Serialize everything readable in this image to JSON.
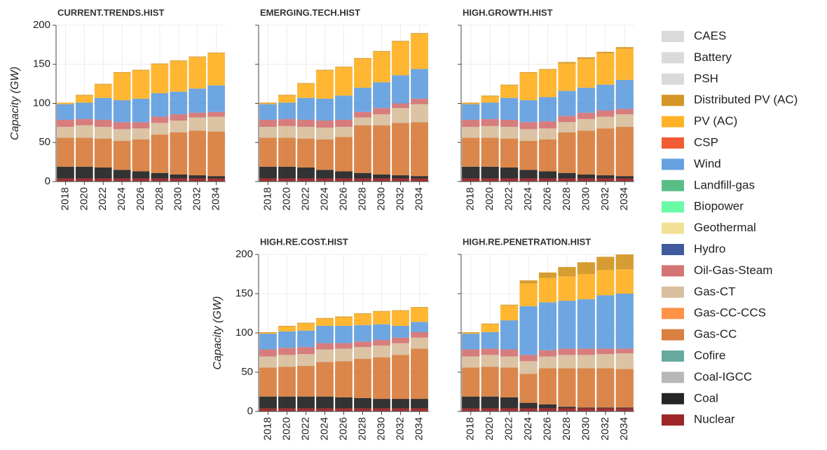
{
  "legend": [
    {
      "name": "CAES",
      "color": "#d3d3d3"
    },
    {
      "name": "Battery",
      "color": "#d3d3d3"
    },
    {
      "name": "PSH",
      "color": "#d3d3d3"
    },
    {
      "name": "Distributed PV (AC)",
      "color": "#cc8400"
    },
    {
      "name": "PV (AC)",
      "color": "#ffa500"
    },
    {
      "name": "CSP",
      "color": "#f04010"
    },
    {
      "name": "Wind",
      "color": "#4a90d9"
    },
    {
      "name": "Landfill-gas",
      "color": "#3cb371"
    },
    {
      "name": "Biopower",
      "color": "#50fa96"
    },
    {
      "name": "Geothermal",
      "color": "#f0dc82"
    },
    {
      "name": "Hydro",
      "color": "#1f3d8c"
    },
    {
      "name": "Oil-Gas-Steam",
      "color": "#cd5c5c"
    },
    {
      "name": "Gas-CT",
      "color": "#d2b48c"
    },
    {
      "name": "Gas-CC-CCS",
      "color": "#ff7f27"
    },
    {
      "name": "Gas-CC",
      "color": "#d2691e"
    },
    {
      "name": "Cofire",
      "color": "#4d9a8f"
    },
    {
      "name": "Coal-IGCC",
      "color": "#aaaaaa"
    },
    {
      "name": "Coal",
      "color": "#000000"
    },
    {
      "name": "Nuclear",
      "color": "#8b0000"
    }
  ],
  "chart_data": [
    {
      "type": "bar",
      "title": "CURRENT.TRENDS.HIST",
      "ylabel": "Capacity (GW)",
      "categories": [
        "2018",
        "2020",
        "2022",
        "2024",
        "2026",
        "2028",
        "2030",
        "2032",
        "2034"
      ],
      "ylim": [
        0,
        200
      ],
      "yticks": [
        0,
        50,
        100,
        150,
        200
      ],
      "series": [
        {
          "name": "Nuclear",
          "color": "#8b0000",
          "values": [
            4,
            4,
            4,
            4,
            4,
            4,
            4,
            4,
            4
          ]
        },
        {
          "name": "Coal",
          "color": "#000000",
          "values": [
            15,
            15,
            14,
            11,
            9,
            7,
            5,
            4,
            3
          ]
        },
        {
          "name": "Gas-CC",
          "color": "#d2691e",
          "values": [
            37,
            37,
            37,
            37,
            41,
            49,
            54,
            57,
            57
          ]
        },
        {
          "name": "Gas-CT",
          "color": "#d2b48c",
          "values": [
            14,
            16,
            15,
            15,
            14,
            15,
            15,
            17,
            19
          ]
        },
        {
          "name": "Oil-Gas-Steam",
          "color": "#cd5c5c",
          "values": [
            9,
            8,
            9,
            9,
            8,
            8,
            8,
            6,
            6
          ]
        },
        {
          "name": "Wind",
          "color": "#4a90d9",
          "values": [
            20,
            21,
            28,
            28,
            30,
            30,
            29,
            31,
            34
          ]
        },
        {
          "name": "PV (AC)",
          "color": "#ffa500",
          "values": [
            2,
            9,
            17,
            35,
            36,
            37,
            39,
            40,
            41
          ]
        },
        {
          "name": "Distributed PV (AC)",
          "color": "#cc8400",
          "values": [
            0,
            1,
            1,
            1,
            1,
            1,
            1,
            1,
            1
          ]
        }
      ]
    },
    {
      "type": "bar",
      "title": "EMERGING.TECH.HIST",
      "categories": [
        "2018",
        "2020",
        "2022",
        "2024",
        "2026",
        "2028",
        "2030",
        "2032",
        "2034"
      ],
      "ylim": [
        0,
        200
      ],
      "yticks": [
        0,
        50,
        100,
        150,
        200
      ],
      "series": [
        {
          "name": "Nuclear",
          "color": "#8b0000",
          "values": [
            4,
            4,
            4,
            4,
            4,
            4,
            4,
            4,
            4
          ]
        },
        {
          "name": "Coal",
          "color": "#000000",
          "values": [
            15,
            15,
            14,
            11,
            9,
            7,
            5,
            4,
            3
          ]
        },
        {
          "name": "Gas-CC",
          "color": "#d2691e",
          "values": [
            37,
            37,
            37,
            39,
            44,
            61,
            63,
            67,
            69
          ]
        },
        {
          "name": "Gas-CT",
          "color": "#d2b48c",
          "values": [
            14,
            15,
            15,
            15,
            13,
            10,
            14,
            19,
            23
          ]
        },
        {
          "name": "Oil-Gas-Steam",
          "color": "#cd5c5c",
          "values": [
            9,
            9,
            9,
            9,
            9,
            7,
            8,
            6,
            7
          ]
        },
        {
          "name": "Wind",
          "color": "#4a90d9",
          "values": [
            20,
            21,
            28,
            28,
            31,
            31,
            33,
            36,
            38
          ]
        },
        {
          "name": "PV (AC)",
          "color": "#ffa500",
          "values": [
            1,
            9,
            18,
            36,
            36,
            37,
            39,
            43,
            45
          ]
        },
        {
          "name": "Distributed PV (AC)",
          "color": "#cc8400",
          "values": [
            1,
            1,
            1,
            1,
            1,
            1,
            1,
            1,
            1
          ]
        }
      ]
    },
    {
      "type": "bar",
      "title": "HIGH.GROWTH.HIST",
      "categories": [
        "2018",
        "2020",
        "2022",
        "2024",
        "2026",
        "2028",
        "2030",
        "2032",
        "2034"
      ],
      "ylim": [
        0,
        200
      ],
      "yticks": [
        0,
        50,
        100,
        150,
        200
      ],
      "series": [
        {
          "name": "Nuclear",
          "color": "#8b0000",
          "values": [
            4,
            4,
            4,
            4,
            4,
            4,
            4,
            4,
            4
          ]
        },
        {
          "name": "Coal",
          "color": "#000000",
          "values": [
            15,
            15,
            14,
            11,
            9,
            7,
            5,
            4,
            3
          ]
        },
        {
          "name": "Gas-CC",
          "color": "#d2691e",
          "values": [
            37,
            37,
            37,
            37,
            41,
            52,
            56,
            60,
            63
          ]
        },
        {
          "name": "Gas-CT",
          "color": "#d2b48c",
          "values": [
            14,
            15,
            15,
            15,
            14,
            13,
            15,
            15,
            16
          ]
        },
        {
          "name": "Oil-Gas-Steam",
          "color": "#cd5c5c",
          "values": [
            9,
            9,
            9,
            9,
            9,
            8,
            8,
            8,
            7
          ]
        },
        {
          "name": "Wind",
          "color": "#4a90d9",
          "values": [
            20,
            21,
            28,
            28,
            31,
            32,
            32,
            33,
            37
          ]
        },
        {
          "name": "PV (AC)",
          "color": "#ffa500",
          "values": [
            1,
            8,
            16,
            35,
            35,
            35,
            37,
            40,
            40
          ]
        },
        {
          "name": "Distributed PV (AC)",
          "color": "#cc8400",
          "values": [
            1,
            1,
            1,
            1,
            1,
            2,
            2,
            2,
            2
          ]
        }
      ]
    },
    {
      "type": "bar",
      "title": "HIGH.RE.COST.HIST",
      "ylabel": "Capacity (GW)",
      "categories": [
        "2018",
        "2020",
        "2022",
        "2024",
        "2026",
        "2028",
        "2030",
        "2032",
        "2034"
      ],
      "ylim": [
        0,
        200
      ],
      "yticks": [
        0,
        50,
        100,
        150,
        200
      ],
      "series": [
        {
          "name": "Nuclear",
          "color": "#8b0000",
          "values": [
            4,
            4,
            4,
            4,
            4,
            4,
            4,
            4,
            4
          ]
        },
        {
          "name": "Coal",
          "color": "#000000",
          "values": [
            15,
            15,
            15,
            15,
            14,
            13,
            12,
            12,
            12
          ]
        },
        {
          "name": "Gas-CC",
          "color": "#d2691e",
          "values": [
            37,
            38,
            39,
            44,
            46,
            50,
            53,
            56,
            64
          ]
        },
        {
          "name": "Gas-CT",
          "color": "#d2b48c",
          "values": [
            14,
            15,
            15,
            16,
            16,
            15,
            15,
            15,
            14
          ]
        },
        {
          "name": "Oil-Gas-Steam",
          "color": "#cd5c5c",
          "values": [
            9,
            9,
            9,
            8,
            7,
            7,
            7,
            7,
            7
          ]
        },
        {
          "name": "Wind",
          "color": "#4a90d9",
          "values": [
            20,
            21,
            21,
            22,
            22,
            21,
            20,
            15,
            13
          ]
        },
        {
          "name": "PV (AC)",
          "color": "#ffa500",
          "values": [
            1,
            6,
            9,
            9,
            11,
            14,
            16,
            19,
            18
          ]
        },
        {
          "name": "Distributed PV (AC)",
          "color": "#cc8400",
          "values": [
            1,
            1,
            1,
            1,
            1,
            1,
            1,
            1,
            1
          ]
        }
      ]
    },
    {
      "type": "bar",
      "title": "HIGH.RE.PENETRATION.HIST",
      "categories": [
        "2018",
        "2020",
        "2022",
        "2024",
        "2026",
        "2028",
        "2030",
        "2032",
        "2034"
      ],
      "ylim": [
        0,
        200
      ],
      "yticks": [
        0,
        50,
        100,
        150,
        200
      ],
      "series": [
        {
          "name": "Nuclear",
          "color": "#8b0000",
          "values": [
            4,
            4,
            4,
            4,
            4,
            4,
            4,
            4,
            4
          ]
        },
        {
          "name": "Coal",
          "color": "#000000",
          "values": [
            15,
            15,
            14,
            7,
            5,
            2,
            1,
            1,
            1
          ]
        },
        {
          "name": "Gas-CC",
          "color": "#d2691e",
          "values": [
            37,
            38,
            38,
            37,
            46,
            49,
            50,
            50,
            49
          ]
        },
        {
          "name": "Gas-CT",
          "color": "#d2b48c",
          "values": [
            14,
            15,
            14,
            16,
            15,
            17,
            17,
            18,
            20
          ]
        },
        {
          "name": "Oil-Gas-Steam",
          "color": "#cd5c5c",
          "values": [
            9,
            8,
            9,
            8,
            8,
            8,
            8,
            7,
            6
          ]
        },
        {
          "name": "Wind",
          "color": "#4a90d9",
          "values": [
            20,
            21,
            37,
            62,
            61,
            61,
            63,
            68,
            70
          ]
        },
        {
          "name": "PV (AC)",
          "color": "#ffa500",
          "values": [
            1,
            10,
            19,
            29,
            31,
            31,
            32,
            32,
            31
          ]
        },
        {
          "name": "Distributed PV (AC)",
          "color": "#cc8400",
          "values": [
            1,
            1,
            1,
            4,
            7,
            12,
            15,
            17,
            19
          ]
        }
      ]
    }
  ]
}
